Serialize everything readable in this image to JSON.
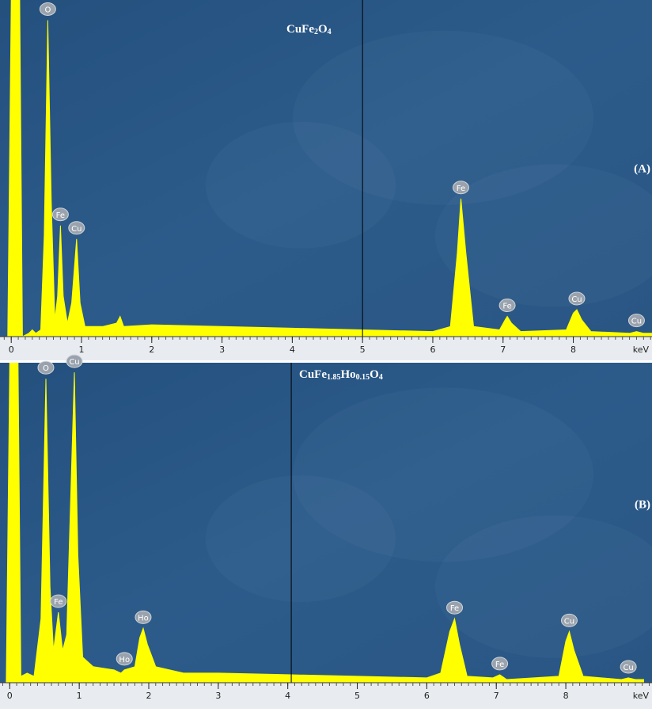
{
  "chart_data": [
    {
      "type": "line",
      "title": [
        "CuFe",
        "2",
        "O",
        "4"
      ],
      "panel_label": "(A)",
      "xlabel": "keV",
      "xlim": [
        -0.16,
        9.12
      ],
      "ylim": [
        0,
        100
      ],
      "xticks": [
        0,
        1,
        2,
        3,
        4,
        5,
        6,
        7,
        8
      ],
      "color": "#ffff00",
      "cursor": 5.0,
      "x": [
        -0.1,
        -0.05,
        0,
        0.12,
        0.16,
        0.25,
        0.3,
        0.35,
        0.42,
        0.47,
        0.52,
        0.57,
        0.62,
        0.66,
        0.7,
        0.74,
        0.8,
        0.86,
        0.93,
        0.98,
        1.05,
        1.3,
        1.5,
        1.55,
        1.6,
        2,
        3,
        4,
        5,
        6,
        6.25,
        6.35,
        6.4,
        6.47,
        6.58,
        6.95,
        7.03,
        7.06,
        7.12,
        7.25,
        7.9,
        8.0,
        8.05,
        8.12,
        8.25,
        8.8,
        8.9,
        9.0,
        9.12
      ],
      "values": [
        0,
        0,
        100,
        100,
        0,
        1,
        2,
        1,
        2,
        30,
        94,
        40,
        5,
        12,
        33,
        12,
        4,
        10,
        29,
        10,
        3,
        3,
        4,
        6,
        3,
        3.5,
        3,
        2.5,
        2,
        1.5,
        3,
        25,
        41,
        25,
        3,
        2,
        5,
        6,
        4,
        1.5,
        2,
        7,
        8,
        5,
        1.5,
        1,
        1.5,
        1,
        1
      ],
      "annotations": [
        {
          "text": "O",
          "x": 0.52,
          "y": 94
        },
        {
          "text": "Fe",
          "x": 0.7,
          "y": 33
        },
        {
          "text": "Cu",
          "x": 0.93,
          "y": 29
        },
        {
          "text": "Fe",
          "x": 6.4,
          "y": 41
        },
        {
          "text": "Fe",
          "x": 7.06,
          "y": 6
        },
        {
          "text": "Cu",
          "x": 8.05,
          "y": 8
        },
        {
          "text": "Cu",
          "x": 8.9,
          "y": 1.5
        }
      ]
    },
    {
      "type": "line",
      "title": [
        "CuFe",
        "1.85",
        "Ho",
        "0.15",
        "O",
        "4"
      ],
      "panel_label": "(B)",
      "xlabel": "keV",
      "xlim": [
        -0.14,
        9.24
      ],
      "ylim": [
        0,
        100
      ],
      "xticks": [
        0,
        1,
        2,
        3,
        4,
        5,
        6,
        7,
        8
      ],
      "color": "#ffff00",
      "cursor": 4.05,
      "x": [
        -0.1,
        -0.05,
        0,
        0.12,
        0.16,
        0.25,
        0.35,
        0.45,
        0.52,
        0.58,
        0.63,
        0.7,
        0.76,
        0.82,
        0.88,
        0.93,
        0.98,
        1.05,
        1.2,
        1.5,
        1.6,
        1.65,
        1.8,
        1.87,
        1.92,
        1.98,
        2.1,
        2.5,
        3,
        4,
        5,
        6,
        6.2,
        6.33,
        6.4,
        6.47,
        6.58,
        6.95,
        7.05,
        7.15,
        7.9,
        8.0,
        8.05,
        8.12,
        8.25,
        8.8,
        8.9,
        9.0,
        9.12
      ],
      "values": [
        0,
        0,
        100,
        100,
        2,
        3,
        2,
        20,
        95,
        30,
        10,
        22,
        10,
        15,
        60,
        97,
        40,
        8,
        5,
        4,
        3,
        4,
        5,
        14,
        17,
        12,
        5,
        3,
        3,
        2.5,
        2,
        1.5,
        3,
        16,
        20,
        12,
        2,
        1.5,
        2.5,
        1,
        2,
        13,
        16,
        10,
        2,
        1,
        1.5,
        1,
        1
      ],
      "annotations": [
        {
          "text": "O",
          "x": 0.52,
          "y": 95
        },
        {
          "text": "Cu",
          "x": 0.93,
          "y": 97
        },
        {
          "text": "Fe",
          "x": 0.7,
          "y": 22
        },
        {
          "text": "Ho",
          "x": 1.92,
          "y": 17
        },
        {
          "text": "Ho",
          "x": 1.65,
          "y": 4
        },
        {
          "text": "Fe",
          "x": 6.4,
          "y": 20
        },
        {
          "text": "Fe",
          "x": 7.05,
          "y": 2.5
        },
        {
          "text": "Cu",
          "x": 8.05,
          "y": 16
        },
        {
          "text": "Cu",
          "x": 8.9,
          "y": 1.5
        }
      ]
    }
  ]
}
